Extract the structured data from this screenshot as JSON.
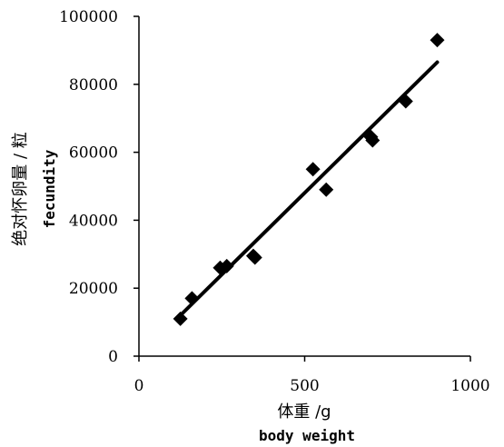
{
  "chart_data": {
    "type": "scatter",
    "xlabel": "体重 /g",
    "xlabel_en": "body weight",
    "ylabel": "绝对怀卵量 / 粒",
    "ylabel_en": "fecundity",
    "xlim": [
      0,
      1000
    ],
    "ylim": [
      0,
      100000
    ],
    "x_ticks": [
      0,
      500,
      1000
    ],
    "x_tick_labels": [
      "0",
      "500",
      "1000"
    ],
    "y_ticks": [
      0,
      20000,
      40000,
      60000,
      80000,
      100000
    ],
    "y_tick_labels": [
      "0",
      "20000",
      "40000",
      "60000",
      "80000",
      "100000"
    ],
    "grid": false,
    "marker": "diamond",
    "marker_color": "#000000",
    "points": [
      {
        "x": 125,
        "y": 11000
      },
      {
        "x": 160,
        "y": 17000
      },
      {
        "x": 245,
        "y": 26000
      },
      {
        "x": 265,
        "y": 26500
      },
      {
        "x": 345,
        "y": 29500
      },
      {
        "x": 350,
        "y": 29000
      },
      {
        "x": 525,
        "y": 55000
      },
      {
        "x": 565,
        "y": 49000
      },
      {
        "x": 700,
        "y": 64500
      },
      {
        "x": 705,
        "y": 63500
      },
      {
        "x": 805,
        "y": 75000
      },
      {
        "x": 900,
        "y": 93000
      }
    ],
    "trendline": {
      "x": [
        125,
        900
      ],
      "y": [
        12000,
        86500
      ],
      "color": "#000000"
    }
  }
}
